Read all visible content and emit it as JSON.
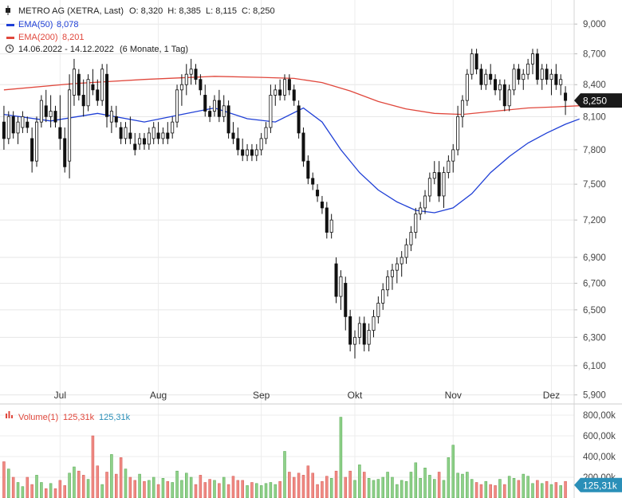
{
  "header": {
    "title": "METRO AG (XETRA, Last)",
    "ohlc": "O: 8,320  H: 8,385  L: 8,115  C: 8,250",
    "ema50": {
      "label": "EMA(50)",
      "value": "8,078",
      "color": "#1f3fd6"
    },
    "ema200": {
      "label": "EMA(200)",
      "value": "8,201",
      "color": "#e0473c"
    },
    "range": "14.06.2022 - 14.12.2022",
    "period": "(6 Monate, 1 Tag)",
    "clock_icon": "clock-icon"
  },
  "current_price_label": "8,250",
  "volume": {
    "label": "Volume(1)",
    "value1": "125,31k",
    "value2": "125,31k",
    "current_label": "125,31k"
  },
  "chart_data": [
    {
      "type": "candlestick",
      "ylim": [
        5.85,
        9.25
      ],
      "scale": "log",
      "grid": true,
      "yticks": [
        "9,000",
        "8,700",
        "8,400",
        "8,100",
        "7,800",
        "7,500",
        "7,200",
        "6,900",
        "6,700",
        "6,500",
        "6,300",
        "6,100",
        "5,900"
      ],
      "ytick_values": [
        9.0,
        8.7,
        8.4,
        8.1,
        7.8,
        7.5,
        7.2,
        6.9,
        6.7,
        6.5,
        6.3,
        6.1,
        5.9
      ],
      "months": [
        {
          "label": "Jul",
          "index": 12
        },
        {
          "label": "Aug",
          "index": 33
        },
        {
          "label": "Sep",
          "index": 55
        },
        {
          "label": "Okt",
          "index": 75
        },
        {
          "label": "Nov",
          "index": 96
        },
        {
          "label": "Dez",
          "index": 117
        }
      ],
      "ohlc": [
        [
          8.05,
          8.2,
          7.8,
          7.9
        ],
        [
          7.9,
          8.15,
          7.85,
          8.1
        ],
        [
          8.1,
          8.15,
          7.9,
          7.95
        ],
        [
          7.95,
          8.1,
          7.85,
          8.05
        ],
        [
          8.0,
          8.15,
          7.95,
          8.1
        ],
        [
          8.05,
          8.1,
          7.95,
          8.0
        ],
        [
          7.9,
          8.0,
          7.6,
          7.7
        ],
        [
          7.7,
          8.1,
          7.65,
          8.05
        ],
        [
          8.05,
          8.3,
          8.0,
          8.25
        ],
        [
          8.2,
          8.35,
          8.05,
          8.1
        ],
        [
          8.1,
          8.3,
          8.0,
          8.15
        ],
        [
          8.15,
          8.2,
          8.0,
          8.05
        ],
        [
          8.0,
          8.3,
          7.8,
          7.9
        ],
        [
          7.9,
          8.0,
          7.6,
          7.65
        ],
        [
          7.7,
          8.5,
          7.55,
          8.35
        ],
        [
          8.3,
          8.65,
          8.2,
          8.55
        ],
        [
          8.5,
          8.55,
          8.25,
          8.3
        ],
        [
          8.3,
          8.45,
          8.1,
          8.2
        ],
        [
          8.2,
          8.5,
          8.15,
          8.45
        ],
        [
          8.4,
          8.55,
          8.3,
          8.35
        ],
        [
          8.35,
          8.45,
          8.2,
          8.25
        ],
        [
          8.25,
          8.6,
          8.2,
          8.55
        ],
        [
          8.5,
          8.6,
          8.0,
          8.1
        ],
        [
          8.05,
          8.2,
          7.95,
          8.15
        ],
        [
          8.1,
          8.2,
          8.0,
          8.05
        ],
        [
          8.0,
          8.05,
          7.85,
          7.9
        ],
        [
          7.9,
          8.05,
          7.85,
          8.0
        ],
        [
          7.95,
          8.1,
          7.85,
          7.9
        ],
        [
          7.85,
          7.95,
          7.75,
          7.8
        ],
        [
          7.85,
          7.95,
          7.8,
          7.9
        ],
        [
          7.9,
          7.95,
          7.8,
          7.85
        ],
        [
          7.85,
          8.0,
          7.8,
          7.95
        ],
        [
          7.9,
          8.05,
          7.85,
          8.0
        ],
        [
          7.95,
          8.05,
          7.85,
          7.9
        ],
        [
          7.9,
          8.0,
          7.85,
          7.95
        ],
        [
          7.95,
          8.05,
          7.85,
          7.9
        ],
        [
          7.95,
          8.1,
          7.9,
          8.05
        ],
        [
          8.05,
          8.4,
          8.0,
          8.35
        ],
        [
          8.35,
          8.5,
          8.2,
          8.4
        ],
        [
          8.4,
          8.6,
          8.3,
          8.5
        ],
        [
          8.5,
          8.65,
          8.4,
          8.55
        ],
        [
          8.55,
          8.6,
          8.4,
          8.45
        ],
        [
          8.45,
          8.5,
          8.3,
          8.35
        ],
        [
          8.3,
          8.4,
          8.1,
          8.15
        ],
        [
          8.15,
          8.2,
          8.05,
          8.1
        ],
        [
          8.15,
          8.3,
          8.1,
          8.25
        ],
        [
          8.25,
          8.35,
          8.05,
          8.1
        ],
        [
          8.1,
          8.3,
          8.05,
          8.2
        ],
        [
          8.2,
          8.25,
          7.9,
          7.95
        ],
        [
          7.95,
          8.05,
          7.85,
          7.9
        ],
        [
          7.9,
          8.0,
          7.75,
          7.8
        ],
        [
          7.8,
          7.9,
          7.7,
          7.75
        ],
        [
          7.75,
          7.85,
          7.7,
          7.8
        ],
        [
          7.8,
          7.85,
          7.7,
          7.75
        ],
        [
          7.75,
          7.85,
          7.7,
          7.8
        ],
        [
          7.8,
          7.95,
          7.75,
          7.9
        ],
        [
          7.9,
          8.05,
          7.85,
          8.0
        ],
        [
          8.0,
          8.4,
          7.95,
          8.3
        ],
        [
          8.3,
          8.4,
          8.2,
          8.35
        ],
        [
          8.35,
          8.45,
          8.25,
          8.3
        ],
        [
          8.3,
          8.5,
          8.25,
          8.45
        ],
        [
          8.45,
          8.5,
          8.3,
          8.35
        ],
        [
          8.35,
          8.4,
          8.2,
          8.25
        ],
        [
          8.2,
          8.25,
          7.9,
          7.95
        ],
        [
          7.95,
          8.0,
          7.65,
          7.7
        ],
        [
          7.7,
          7.75,
          7.5,
          7.55
        ],
        [
          7.55,
          7.6,
          7.45,
          7.5
        ],
        [
          7.45,
          7.5,
          7.35,
          7.4
        ],
        [
          7.35,
          7.4,
          7.25,
          7.3
        ],
        [
          7.3,
          7.35,
          7.05,
          7.1
        ],
        [
          7.1,
          7.25,
          7.05,
          7.2
        ],
        [
          6.85,
          6.9,
          6.55,
          6.6
        ],
        [
          6.6,
          6.8,
          6.5,
          6.75
        ],
        [
          6.7,
          6.75,
          6.35,
          6.45
        ],
        [
          6.45,
          6.5,
          6.2,
          6.25
        ],
        [
          6.25,
          6.35,
          6.15,
          6.3
        ],
        [
          6.3,
          6.45,
          6.25,
          6.4
        ],
        [
          6.4,
          6.45,
          6.2,
          6.25
        ],
        [
          6.25,
          6.4,
          6.2,
          6.35
        ],
        [
          6.35,
          6.5,
          6.3,
          6.45
        ],
        [
          6.45,
          6.6,
          6.4,
          6.55
        ],
        [
          6.55,
          6.7,
          6.5,
          6.65
        ],
        [
          6.65,
          6.8,
          6.6,
          6.75
        ],
        [
          6.75,
          6.85,
          6.65,
          6.8
        ],
        [
          6.8,
          6.9,
          6.7,
          6.85
        ],
        [
          6.85,
          6.95,
          6.75,
          6.9
        ],
        [
          6.9,
          7.05,
          6.85,
          7.0
        ],
        [
          7.0,
          7.15,
          6.95,
          7.1
        ],
        [
          7.1,
          7.3,
          7.05,
          7.25
        ],
        [
          7.25,
          7.35,
          7.2,
          7.3
        ],
        [
          7.3,
          7.45,
          7.25,
          7.4
        ],
        [
          7.4,
          7.6,
          7.35,
          7.55
        ],
        [
          7.55,
          7.7,
          7.5,
          7.6
        ],
        [
          7.6,
          7.7,
          7.35,
          7.4
        ],
        [
          7.4,
          7.65,
          7.3,
          7.6
        ],
        [
          7.6,
          7.75,
          7.55,
          7.7
        ],
        [
          7.7,
          7.85,
          7.6,
          7.8
        ],
        [
          7.8,
          8.2,
          7.75,
          8.1
        ],
        [
          8.1,
          8.3,
          8.0,
          8.25
        ],
        [
          8.25,
          8.55,
          8.2,
          8.5
        ],
        [
          8.5,
          8.75,
          8.45,
          8.7
        ],
        [
          8.7,
          8.75,
          8.5,
          8.55
        ],
        [
          8.55,
          8.6,
          8.35,
          8.4
        ],
        [
          8.4,
          8.55,
          8.35,
          8.5
        ],
        [
          8.5,
          8.6,
          8.4,
          8.45
        ],
        [
          8.45,
          8.5,
          8.3,
          8.35
        ],
        [
          8.35,
          8.45,
          8.25,
          8.4
        ],
        [
          8.4,
          8.45,
          8.15,
          8.2
        ],
        [
          8.2,
          8.4,
          8.15,
          8.35
        ],
        [
          8.35,
          8.6,
          8.3,
          8.55
        ],
        [
          8.55,
          8.6,
          8.4,
          8.45
        ],
        [
          8.45,
          8.55,
          8.35,
          8.5
        ],
        [
          8.5,
          8.65,
          8.45,
          8.6
        ],
        [
          8.6,
          8.75,
          8.5,
          8.7
        ],
        [
          8.7,
          8.75,
          8.4,
          8.45
        ],
        [
          8.45,
          8.6,
          8.35,
          8.55
        ],
        [
          8.55,
          8.6,
          8.4,
          8.45
        ],
        [
          8.45,
          8.55,
          8.3,
          8.5
        ],
        [
          8.5,
          8.6,
          8.35,
          8.4
        ],
        [
          8.4,
          8.5,
          8.3,
          8.45
        ],
        [
          8.32,
          8.385,
          8.115,
          8.25
        ]
      ],
      "ema50": [
        [
          0,
          8.12
        ],
        [
          10,
          8.06
        ],
        [
          20,
          8.13
        ],
        [
          30,
          8.05
        ],
        [
          38,
          8.12
        ],
        [
          45,
          8.18
        ],
        [
          52,
          8.08
        ],
        [
          58,
          8.05
        ],
        [
          64,
          8.18
        ],
        [
          68,
          8.05
        ],
        [
          72,
          7.8
        ],
        [
          76,
          7.6
        ],
        [
          80,
          7.45
        ],
        [
          84,
          7.35
        ],
        [
          88,
          7.28
        ],
        [
          92,
          7.26
        ],
        [
          96,
          7.3
        ],
        [
          100,
          7.42
        ],
        [
          104,
          7.6
        ],
        [
          108,
          7.74
        ],
        [
          112,
          7.86
        ],
        [
          116,
          7.95
        ],
        [
          120,
          8.03
        ],
        [
          123,
          8.078
        ]
      ],
      "ema200": [
        [
          0,
          8.35
        ],
        [
          15,
          8.41
        ],
        [
          30,
          8.45
        ],
        [
          45,
          8.48
        ],
        [
          55,
          8.47
        ],
        [
          62,
          8.46
        ],
        [
          68,
          8.42
        ],
        [
          74,
          8.34
        ],
        [
          80,
          8.24
        ],
        [
          86,
          8.17
        ],
        [
          92,
          8.13
        ],
        [
          98,
          8.12
        ],
        [
          105,
          8.15
        ],
        [
          112,
          8.18
        ],
        [
          118,
          8.19
        ],
        [
          123,
          8.201
        ]
      ]
    },
    {
      "type": "bar",
      "ylim": [
        0,
        900
      ],
      "unit": "k",
      "yticks": [
        "800,00k",
        "600,00k",
        "400,00k",
        "200,00k"
      ],
      "ytick_values": [
        800,
        600,
        400,
        200
      ],
      "values": [
        350,
        280,
        200,
        150,
        110,
        200,
        130,
        220,
        150,
        90,
        140,
        90,
        170,
        120,
        240,
        300,
        260,
        220,
        180,
        600,
        310,
        130,
        250,
        420,
        230,
        390,
        280,
        200,
        170,
        230,
        160,
        170,
        200,
        130,
        190,
        160,
        150,
        260,
        170,
        240,
        200,
        130,
        220,
        150,
        180,
        170,
        140,
        200,
        130,
        210,
        170,
        170,
        120,
        150,
        140,
        120,
        140,
        150,
        130,
        160,
        450,
        250,
        200,
        240,
        220,
        310,
        240,
        130,
        160,
        210,
        190,
        260,
        780,
        200,
        260,
        170,
        320,
        250,
        190,
        170,
        180,
        200,
        250,
        200,
        130,
        170,
        160,
        250,
        340,
        190,
        290,
        220,
        180,
        250,
        170,
        390,
        510,
        240,
        230,
        250,
        180,
        150,
        130,
        160,
        130,
        120,
        180,
        130,
        210,
        190,
        170,
        230,
        210,
        140,
        170,
        140,
        160,
        130,
        150,
        120,
        160,
        125
      ]
    }
  ]
}
